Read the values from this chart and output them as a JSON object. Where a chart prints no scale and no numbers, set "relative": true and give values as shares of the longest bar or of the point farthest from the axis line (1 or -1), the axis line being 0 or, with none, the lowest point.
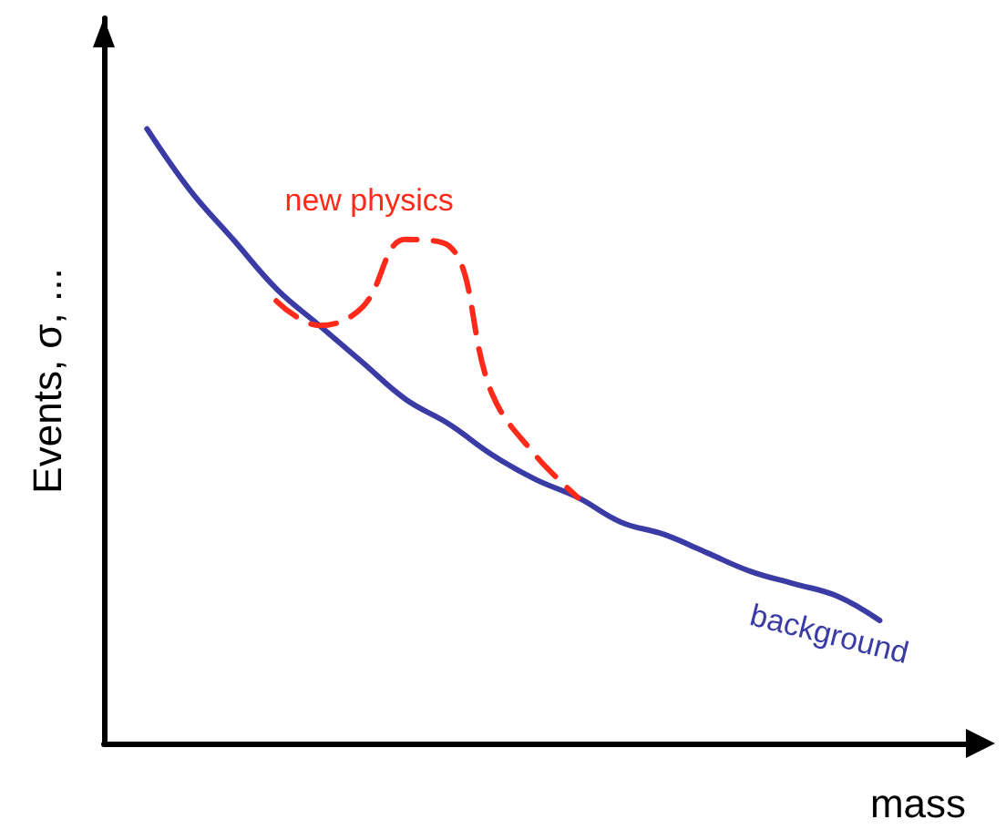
{
  "chart_data": {
    "type": "line",
    "relative": true,
    "xlabel": "mass",
    "ylabel": "Events, σ, ...",
    "categories": [
      null,
      null,
      null,
      null,
      null,
      null,
      null,
      null,
      null,
      null,
      null,
      null,
      null,
      null,
      null,
      null,
      null,
      null,
      null,
      null,
      null
    ],
    "grid": false,
    "legend": false,
    "marker": "none",
    "series": [
      {
        "name": "background",
        "color": "#3b3ba6",
        "line_style": "solid",
        "values": [
          null,
          1,
          0.9,
          0.82,
          0.74,
          0.68,
          0.62,
          0.56,
          0.52,
          0.47,
          0.43,
          0.4,
          0.36,
          0.34,
          0.31,
          0.28,
          0.26,
          0.24,
          0.2,
          null,
          null
        ]
      },
      {
        "name": "new physics",
        "color": "#ff2a1a",
        "line_style": "dashed",
        "values": [
          null,
          null,
          null,
          null,
          0.72,
          0.68,
          0.71,
          0.82,
          0.81,
          0.57,
          0.47,
          0.4,
          null,
          null,
          null,
          null,
          null,
          null,
          null,
          null,
          null
        ]
      }
    ]
  }
}
